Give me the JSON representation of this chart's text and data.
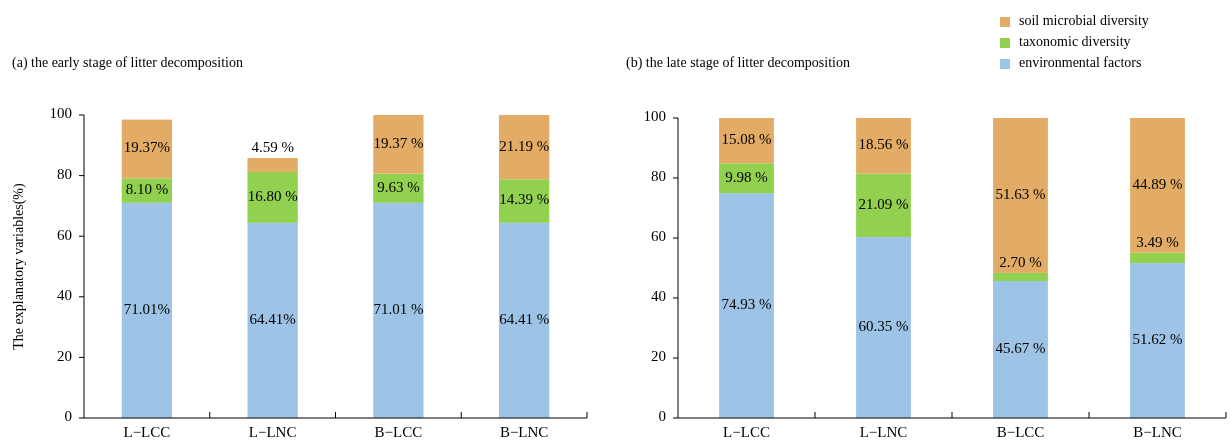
{
  "chart_data": [
    {
      "type": "bar",
      "title": "(a) the early stage of litter decomposition",
      "ylabel": "The explanatory variables(%)",
      "categories": [
        "L−LCC",
        "L−LNC",
        "B−LCC",
        "B−LNC"
      ],
      "stacked": true,
      "ylim": [
        0,
        100
      ],
      "yticks": [
        0,
        20,
        40,
        60,
        80,
        100
      ],
      "grid": false,
      "series": [
        {
          "color": "#9dc3e6",
          "values": [
            71.01,
            64.41,
            71.01,
            64.41
          ],
          "value_labels": [
            "71.01%",
            "64.41%",
            "71.01 %",
            "64.41 %"
          ]
        },
        {
          "color": "#92d050",
          "values": [
            8.1,
            16.8,
            9.63,
            14.39
          ],
          "value_labels": [
            "8.10 %",
            "16.80 %",
            "9.63 %",
            "14.39 %"
          ]
        },
        {
          "color": "#e3ac66",
          "values": [
            19.37,
            4.59,
            19.37,
            21.19
          ],
          "value_labels": [
            "19.37%",
            "4.59 %",
            "19.37 %",
            "21.19 %"
          ]
        }
      ]
    },
    {
      "type": "bar",
      "title": "(b) the late stage of litter decomposition",
      "categories": [
        "L−LCC",
        "L−LNC",
        "B−LCC",
        "B−LNC"
      ],
      "stacked": true,
      "ylim": [
        0,
        100
      ],
      "yticks": [
        0,
        20,
        40,
        60,
        80,
        100
      ],
      "grid": false,
      "legend": "top right",
      "series": [
        {
          "name": "environmental factors",
          "color": "#9dc3e6",
          "values": [
            74.93,
            60.35,
            45.67,
            51.62
          ],
          "value_labels": [
            "74.93 %",
            "60.35 %",
            "45.67 %",
            "51.62 %"
          ]
        },
        {
          "name": "taxonomic diversity",
          "color": "#92d050",
          "values": [
            9.98,
            21.09,
            2.7,
            3.49
          ],
          "value_labels": [
            "9.98 %",
            "21.09 %",
            "2.70 %",
            "3.49 %"
          ]
        },
        {
          "name": "soil microbial diversity",
          "color": "#e3ac66",
          "values": [
            15.08,
            18.56,
            51.63,
            44.89
          ],
          "value_labels": [
            "15.08 %",
            "18.56 %",
            "51.63 %",
            "44.89 %"
          ]
        }
      ]
    }
  ]
}
